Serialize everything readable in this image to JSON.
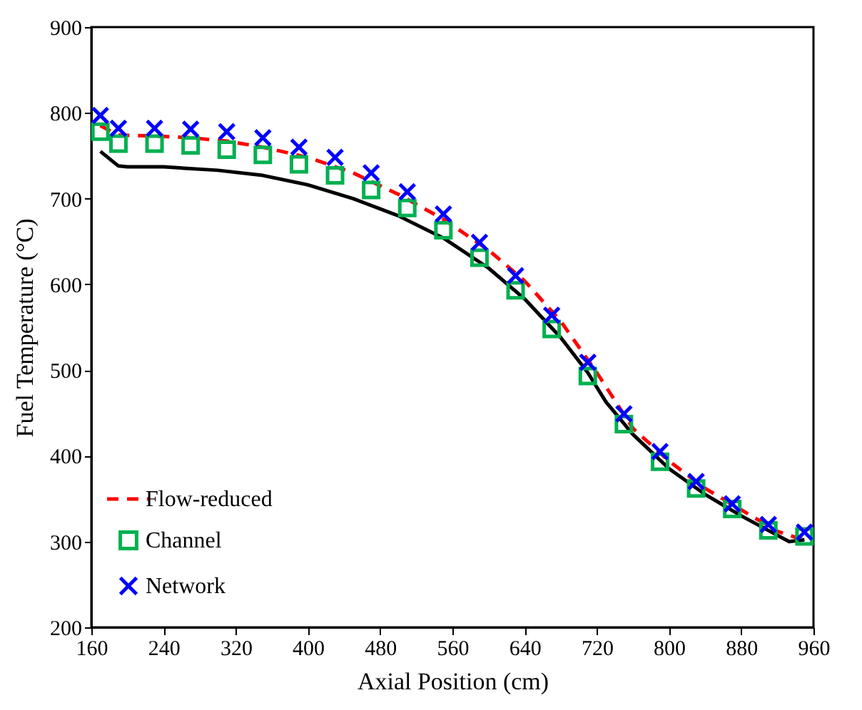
{
  "chart_data": {
    "type": "line",
    "xlabel": "Axial Position (cm)",
    "ylabel": "Fuel Temperature (°C)",
    "xlim": [
      160,
      960
    ],
    "ylim": [
      200,
      900
    ],
    "xticks": [
      160,
      240,
      320,
      400,
      480,
      560,
      640,
      720,
      800,
      880,
      960
    ],
    "yticks": [
      200,
      300,
      400,
      500,
      600,
      700,
      800,
      900
    ],
    "grid": false,
    "legend": "bottom left",
    "series": [
      {
        "color": "#000000",
        "line_style": "solid",
        "x": [
          170,
          190,
          200,
          240,
          300,
          350,
          400,
          450,
          500,
          550,
          600,
          640,
          680,
          710,
          730,
          760,
          800,
          840,
          880,
          910,
          933,
          950
        ],
        "values": [
          755,
          738,
          737,
          737,
          733,
          727,
          716,
          700,
          680,
          654,
          619,
          583,
          538,
          497,
          463,
          425,
          385,
          355,
          330,
          313,
          300,
          302
        ]
      },
      {
        "name": "Flow-reduced",
        "color": "#ff0000",
        "line_style": "dashed",
        "x": [
          170,
          190,
          230,
          270,
          310,
          350,
          400,
          450,
          500,
          550,
          600,
          640,
          680,
          720,
          760,
          800,
          840,
          880,
          920,
          940,
          955
        ],
        "values": [
          785,
          774,
          773,
          771,
          767,
          760,
          748,
          730,
          705,
          676,
          640,
          604,
          557,
          497,
          432,
          394,
          362,
          337,
          312,
          305,
          308
        ]
      },
      {
        "name": "Channel",
        "type": "scatter",
        "color": "#00b050",
        "marker": "square",
        "x": [
          170,
          190,
          230,
          270,
          310,
          350,
          390,
          430,
          470,
          510,
          550,
          590,
          630,
          670,
          710,
          750,
          790,
          830,
          870,
          910,
          950
        ],
        "values": [
          778,
          764,
          764,
          762,
          757,
          751,
          740,
          727,
          710,
          689,
          663,
          631,
          593,
          548,
          493,
          437,
          393,
          362,
          338,
          313,
          306
        ]
      },
      {
        "name": "Network",
        "type": "scatter",
        "color": "#0000ff",
        "marker": "cross",
        "x": [
          170,
          190,
          230,
          270,
          310,
          350,
          390,
          430,
          470,
          510,
          550,
          590,
          630,
          670,
          710,
          750,
          790,
          830,
          870,
          910,
          950
        ],
        "values": [
          797,
          782,
          782,
          781,
          778,
          771,
          760,
          748,
          730,
          708,
          682,
          649,
          610,
          564,
          509,
          449,
          405,
          370,
          344,
          320,
          311
        ]
      }
    ]
  }
}
